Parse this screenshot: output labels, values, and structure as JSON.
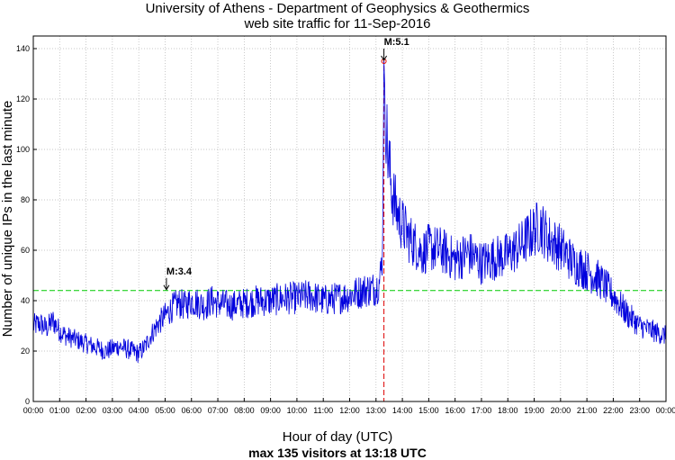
{
  "chart_data": {
    "type": "line",
    "title_line1": "University of Athens - Department of Geophysics & Geothermics",
    "title_line2": "web site traffic for 11-Sep-2016",
    "xlabel": "Hour of day (UTC)",
    "ylabel": "Number of unique IPs in the last minute",
    "footer": "max 135 visitors at 13:18 UTC",
    "xlim": [
      0,
      24
    ],
    "ylim": [
      0,
      145
    ],
    "y_ticks": [
      0,
      20,
      40,
      60,
      80,
      100,
      120,
      140
    ],
    "y_tick_labels": [
      "0",
      "20",
      "40",
      "60",
      "80",
      "100",
      "120",
      "140"
    ],
    "x_ticks": [
      0,
      1,
      2,
      3,
      4,
      5,
      6,
      7,
      8,
      9,
      10,
      11,
      12,
      13,
      14,
      15,
      16,
      17,
      18,
      19,
      20,
      21,
      22,
      23,
      24
    ],
    "x_tick_labels": [
      "00:00",
      "01:00",
      "02:00",
      "03:00",
      "04:00",
      "05:00",
      "06:00",
      "07:00",
      "08:00",
      "09:00",
      "10:00",
      "11:00",
      "12:00",
      "13:00",
      "14:00",
      "15:00",
      "16:00",
      "17:00",
      "18:00",
      "19:00",
      "20:00",
      "21:00",
      "22:00",
      "23:00",
      "00:00"
    ],
    "grid": true,
    "series": [
      {
        "name": "visitors",
        "color": "#0000dd",
        "x": [
          0,
          0.25,
          0.5,
          0.75,
          1,
          1.25,
          1.5,
          1.75,
          2,
          2.25,
          2.5,
          2.75,
          3,
          3.25,
          3.5,
          3.75,
          4,
          4.25,
          4.5,
          4.75,
          5,
          5.25,
          5.5,
          5.75,
          6,
          6.25,
          6.5,
          6.75,
          7,
          7.5,
          8,
          8.5,
          9,
          9.5,
          10,
          10.5,
          11,
          11.5,
          12,
          12.5,
          13,
          13.15,
          13.25,
          13.3,
          13.35,
          13.45,
          13.6,
          13.8,
          14,
          14.25,
          14.5,
          14.75,
          15,
          15.5,
          16,
          16.5,
          17,
          17.5,
          18,
          18.5,
          19,
          19.25,
          19.5,
          20,
          20.5,
          21,
          21.5,
          22,
          22.5,
          23,
          23.5,
          24
        ],
        "y": [
          30,
          31,
          29,
          32,
          28,
          26,
          25,
          24,
          23,
          22,
          21,
          20,
          21,
          22,
          21,
          20,
          19,
          22,
          27,
          31,
          34,
          37,
          39,
          38,
          40,
          39,
          38,
          40,
          39,
          38,
          39,
          40,
          40,
          41,
          41,
          42,
          40,
          41,
          42,
          44,
          45,
          48,
          60,
          135,
          118,
          98,
          84,
          75,
          70,
          65,
          62,
          59,
          61,
          60,
          56,
          59,
          55,
          57,
          58,
          62,
          68,
          70,
          65,
          61,
          55,
          52,
          48,
          42,
          35,
          30,
          28,
          26
        ]
      }
    ],
    "reference_lines": [
      {
        "name": "mean-line",
        "axis": "y",
        "value": 44,
        "color": "#00cc00",
        "style": "dashed"
      },
      {
        "name": "quake-line",
        "axis": "x",
        "value": 13.3,
        "color": "#dd0000",
        "style": "dashed"
      }
    ],
    "annotations": [
      {
        "name": "annotation-m34",
        "text": "M:3.4",
        "x": 5.05,
        "y": 44,
        "arrow": true
      },
      {
        "name": "annotation-m51",
        "text": "M:5.1",
        "x": 13.3,
        "y": 135,
        "arrow": true
      }
    ]
  }
}
